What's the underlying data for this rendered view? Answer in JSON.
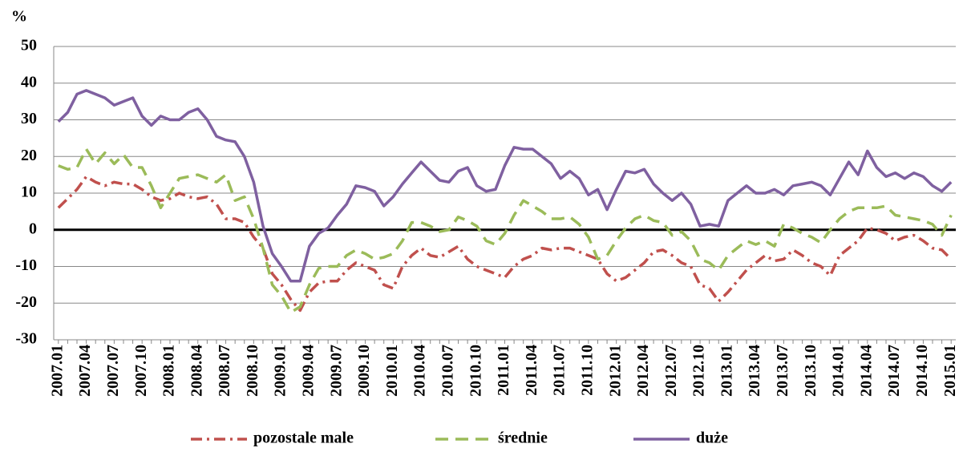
{
  "chart_data": {
    "type": "line",
    "ylabel": "%",
    "categories": [
      "2007.01",
      null,
      null,
      "2007.04",
      null,
      null,
      "2007.07",
      null,
      null,
      "2007.10",
      null,
      null,
      "2008.01",
      null,
      null,
      "2008.04",
      null,
      null,
      "2008.07",
      null,
      null,
      "2008.10",
      null,
      null,
      "2009.01",
      null,
      null,
      "2009.04",
      null,
      null,
      "2009.07",
      null,
      null,
      "2009.10",
      null,
      null,
      "2010.01",
      null,
      null,
      "2010.04",
      null,
      null,
      "2010.07",
      null,
      null,
      "2010.10",
      null,
      null,
      "2011.01",
      null,
      null,
      "2011.04",
      null,
      null,
      "2011.07",
      null,
      null,
      "2011.10",
      null,
      null,
      "2012.01",
      null,
      null,
      "2012.04",
      null,
      null,
      "2012.07",
      null,
      null,
      "2012.10",
      null,
      null,
      "2013.01",
      null,
      null,
      "2013.04",
      null,
      null,
      "2013.07",
      null,
      null,
      "2013.10",
      null,
      null,
      "2014.01",
      null,
      null,
      "2014.04",
      null,
      null,
      "2014.07",
      null,
      null,
      "2014.10",
      null,
      null,
      "2015.01"
    ],
    "series": [
      {
        "name": "pozostale male",
        "color": "#c0504d",
        "dash": "14,6,3,6",
        "values": [
          6,
          8.5,
          11,
          14.5,
          13,
          12,
          13,
          12.5,
          12.5,
          11,
          9,
          8,
          8.5,
          10,
          9,
          8.5,
          9,
          7,
          3,
          3,
          2,
          -2,
          -5,
          -12,
          -15,
          -19,
          -22,
          -17,
          -14.5,
          -14,
          -14,
          -11,
          -9,
          -10,
          -11,
          -15,
          -16,
          -10,
          -7,
          -5,
          -7,
          -7.5,
          -6,
          -4.5,
          -8,
          -10,
          -11,
          -12,
          -13,
          -10,
          -8,
          -7,
          -5,
          -5.5,
          -5,
          -5,
          -6,
          -7,
          -8,
          -12,
          -14,
          -13,
          -11,
          -9,
          -6,
          -5.5,
          -7,
          -9,
          -10,
          -15,
          -16,
          -19.5,
          -17,
          -14,
          -11,
          -9,
          -7,
          -8.5,
          -8,
          -5.5,
          -7,
          -9,
          -10,
          -12.5,
          -7,
          -5,
          -3,
          0.5,
          0,
          -1,
          -3,
          -2,
          -1.5,
          -3,
          -5,
          -5.5,
          -8
        ]
      },
      {
        "name": "średnie",
        "color": "#9bbb59",
        "dash": "16,9",
        "values": [
          17.5,
          16.5,
          17,
          22,
          18,
          21,
          18,
          20.5,
          17,
          17,
          12,
          6,
          10,
          14,
          14.5,
          15,
          14,
          13,
          15,
          8,
          9,
          3,
          -5,
          -15,
          -18,
          -22.5,
          -21,
          -15,
          -10.5,
          -10,
          -10,
          -7,
          -5.5,
          -6.5,
          -8,
          -7.5,
          -6.5,
          -3,
          2,
          2,
          1,
          -0.5,
          0,
          3.5,
          2.5,
          1,
          -3,
          -4,
          -1,
          4,
          8,
          6.5,
          5,
          3,
          3,
          3.5,
          1.5,
          -2,
          -8,
          -7,
          -3,
          0.5,
          3,
          4,
          2.5,
          2,
          -1.5,
          -0.5,
          -3,
          -8,
          -9,
          -11,
          -7,
          -5,
          -3,
          -4,
          -3,
          -4.5,
          1.5,
          0.5,
          -1,
          -2,
          -3.5,
          0,
          3,
          5,
          6,
          6,
          6,
          6.5,
          4,
          3.5,
          3,
          2.5,
          1.5,
          -1.5,
          4
        ]
      },
      {
        "name": "duże",
        "color": "#7f60a0",
        "dash": "",
        "values": [
          29.5,
          32,
          37,
          38,
          37,
          36,
          34,
          35,
          36,
          31,
          28.5,
          31,
          30,
          30,
          32,
          33,
          30,
          25.5,
          24.5,
          24,
          20,
          13,
          1,
          -6.5,
          -10,
          -14,
          -14,
          -4.5,
          -1,
          0.5,
          4,
          7,
          12,
          11.5,
          10.5,
          6.5,
          9,
          12.5,
          15.5,
          18.5,
          16,
          13.5,
          13,
          16,
          17,
          12,
          10.5,
          11,
          17.5,
          22.5,
          22,
          22,
          20,
          18,
          14,
          16,
          14,
          9.5,
          11,
          5.5,
          11,
          16,
          15.5,
          16.5,
          12.5,
          10,
          8,
          10,
          7,
          1,
          1.5,
          1,
          8,
          10,
          12,
          10,
          10,
          11,
          9.5,
          12,
          12.5,
          13,
          12,
          9.5,
          14,
          18.5,
          15,
          21.5,
          17,
          14.5,
          15.5,
          14,
          15.5,
          14.5,
          12,
          10.5,
          13
        ]
      }
    ],
    "ylim": [
      -30,
      50
    ],
    "yticks": [
      -30,
      -20,
      -10,
      0,
      10,
      20,
      30,
      40,
      50
    ],
    "grid": true,
    "legend": "bottom"
  }
}
